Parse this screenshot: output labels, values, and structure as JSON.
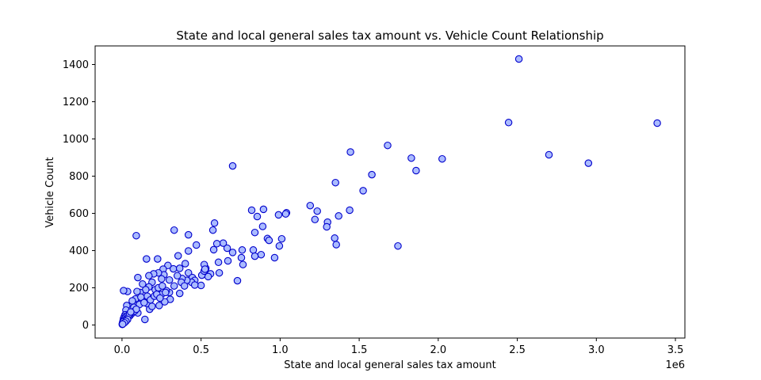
{
  "chart_data": {
    "type": "scatter",
    "title": "State and local general sales tax amount vs. Vehicle Count Relationship",
    "xlabel": "State and local general sales tax amount",
    "ylabel": "Vehicle Count",
    "x_offset_label": "1e6",
    "xlim": [
      -170000,
      3560000
    ],
    "ylim": [
      -70,
      1500
    ],
    "x_ticks": [
      0,
      500000,
      1000000,
      1500000,
      2000000,
      2500000,
      3000000,
      3500000
    ],
    "x_tick_labels": [
      "0.0",
      "0.5",
      "1.0",
      "1.5",
      "2.0",
      "2.5",
      "3.0",
      "3.5"
    ],
    "y_ticks": [
      0,
      200,
      400,
      600,
      800,
      1000,
      1200,
      1400
    ],
    "y_tick_labels": [
      "0",
      "200",
      "400",
      "600",
      "800",
      "1000",
      "1200",
      "1400"
    ],
    "grid": false,
    "marker_fill": "#aabbff",
    "marker_edge": "#0000cc",
    "points": [
      [
        2510000,
        1430
      ],
      [
        2445000,
        1088
      ],
      [
        3385000,
        1085
      ],
      [
        1680000,
        965
      ],
      [
        2700000,
        915
      ],
      [
        2950000,
        870
      ],
      [
        1445000,
        930
      ],
      [
        1830000,
        897
      ],
      [
        2025000,
        893
      ],
      [
        1860000,
        830
      ],
      [
        1580000,
        808
      ],
      [
        700000,
        855
      ],
      [
        1350000,
        765
      ],
      [
        1525000,
        722
      ],
      [
        1190000,
        642
      ],
      [
        1235000,
        612
      ],
      [
        1440000,
        617
      ],
      [
        1370000,
        586
      ],
      [
        1220000,
        567
      ],
      [
        1300000,
        553
      ],
      [
        1295000,
        528
      ],
      [
        1345000,
        467
      ],
      [
        1355000,
        432
      ],
      [
        1745000,
        425
      ],
      [
        1040000,
        603
      ],
      [
        1035000,
        597
      ],
      [
        990000,
        592
      ],
      [
        895000,
        622
      ],
      [
        820000,
        617
      ],
      [
        855000,
        583
      ],
      [
        890000,
        530
      ],
      [
        840000,
        497
      ],
      [
        920000,
        465
      ],
      [
        930000,
        455
      ],
      [
        1010000,
        463
      ],
      [
        995000,
        425
      ],
      [
        965000,
        362
      ],
      [
        830000,
        403
      ],
      [
        880000,
        378
      ],
      [
        840000,
        370
      ],
      [
        760000,
        403
      ],
      [
        755000,
        362
      ],
      [
        765000,
        325
      ],
      [
        700000,
        390
      ],
      [
        665000,
        413
      ],
      [
        640000,
        440
      ],
      [
        600000,
        437
      ],
      [
        585000,
        548
      ],
      [
        575000,
        510
      ],
      [
        610000,
        337
      ],
      [
        580000,
        405
      ],
      [
        560000,
        275
      ],
      [
        530000,
        305
      ],
      [
        520000,
        325
      ],
      [
        545000,
        260
      ],
      [
        615000,
        280
      ],
      [
        730000,
        238
      ],
      [
        670000,
        345
      ],
      [
        420000,
        485
      ],
      [
        330000,
        510
      ],
      [
        90000,
        480
      ],
      [
        225000,
        355
      ],
      [
        155000,
        355
      ],
      [
        470000,
        430
      ],
      [
        420000,
        398
      ],
      [
        400000,
        330
      ],
      [
        355000,
        372
      ],
      [
        325000,
        302
      ],
      [
        365000,
        305
      ],
      [
        290000,
        320
      ],
      [
        260000,
        300
      ],
      [
        265000,
        270
      ],
      [
        230000,
        280
      ],
      [
        300000,
        242
      ],
      [
        250000,
        248
      ],
      [
        200000,
        275
      ],
      [
        170000,
        265
      ],
      [
        100000,
        255
      ],
      [
        420000,
        280
      ],
      [
        445000,
        255
      ],
      [
        460000,
        240
      ],
      [
        440000,
        230
      ],
      [
        410000,
        240
      ],
      [
        380000,
        250
      ],
      [
        350000,
        265
      ],
      [
        330000,
        210
      ],
      [
        375000,
        230
      ],
      [
        395000,
        210
      ],
      [
        365000,
        170
      ],
      [
        300000,
        175
      ],
      [
        280000,
        185
      ],
      [
        250000,
        165
      ],
      [
        305000,
        138
      ],
      [
        235000,
        105
      ],
      [
        270000,
        125
      ],
      [
        210000,
        190
      ],
      [
        190000,
        230
      ],
      [
        170000,
        205
      ],
      [
        150000,
        190
      ],
      [
        130000,
        220
      ],
      [
        115000,
        175
      ],
      [
        95000,
        180
      ],
      [
        160000,
        155
      ],
      [
        130000,
        130
      ],
      [
        110000,
        110
      ],
      [
        85000,
        140
      ],
      [
        70000,
        120
      ],
      [
        55000,
        105
      ],
      [
        45000,
        85
      ],
      [
        35000,
        180
      ],
      [
        10000,
        185
      ],
      [
        160000,
        115
      ],
      [
        175000,
        85
      ],
      [
        145000,
        30
      ],
      [
        100000,
        65
      ],
      [
        75000,
        95
      ],
      [
        60000,
        60
      ],
      [
        50000,
        50
      ],
      [
        40000,
        65
      ],
      [
        30000,
        105
      ],
      [
        25000,
        80
      ],
      [
        20000,
        55
      ],
      [
        15000,
        45
      ],
      [
        10000,
        35
      ],
      [
        8000,
        25
      ],
      [
        5000,
        15
      ],
      [
        3000,
        8
      ],
      [
        2000,
        3
      ],
      [
        12000,
        20
      ],
      [
        18000,
        30
      ],
      [
        22000,
        40
      ],
      [
        28000,
        35
      ],
      [
        35000,
        50
      ],
      [
        42000,
        45
      ],
      [
        48000,
        60
      ],
      [
        6000,
        10
      ],
      [
        9000,
        18
      ],
      [
        500000,
        213
      ],
      [
        505000,
        268
      ],
      [
        460000,
        215
      ],
      [
        520000,
        290
      ],
      [
        525000,
        300
      ],
      [
        180000,
        135
      ],
      [
        205000,
        155
      ],
      [
        230000,
        200
      ],
      [
        255000,
        210
      ],
      [
        275000,
        175
      ],
      [
        220000,
        165
      ],
      [
        240000,
        145
      ],
      [
        190000,
        100
      ],
      [
        120000,
        150
      ],
      [
        140000,
        120
      ],
      [
        65000,
        130
      ],
      [
        80000,
        75
      ],
      [
        90000,
        85
      ],
      [
        55000,
        70
      ],
      [
        35000,
        30
      ],
      [
        25000,
        20
      ],
      [
        15000,
        12
      ],
      [
        4000,
        5
      ]
    ]
  }
}
